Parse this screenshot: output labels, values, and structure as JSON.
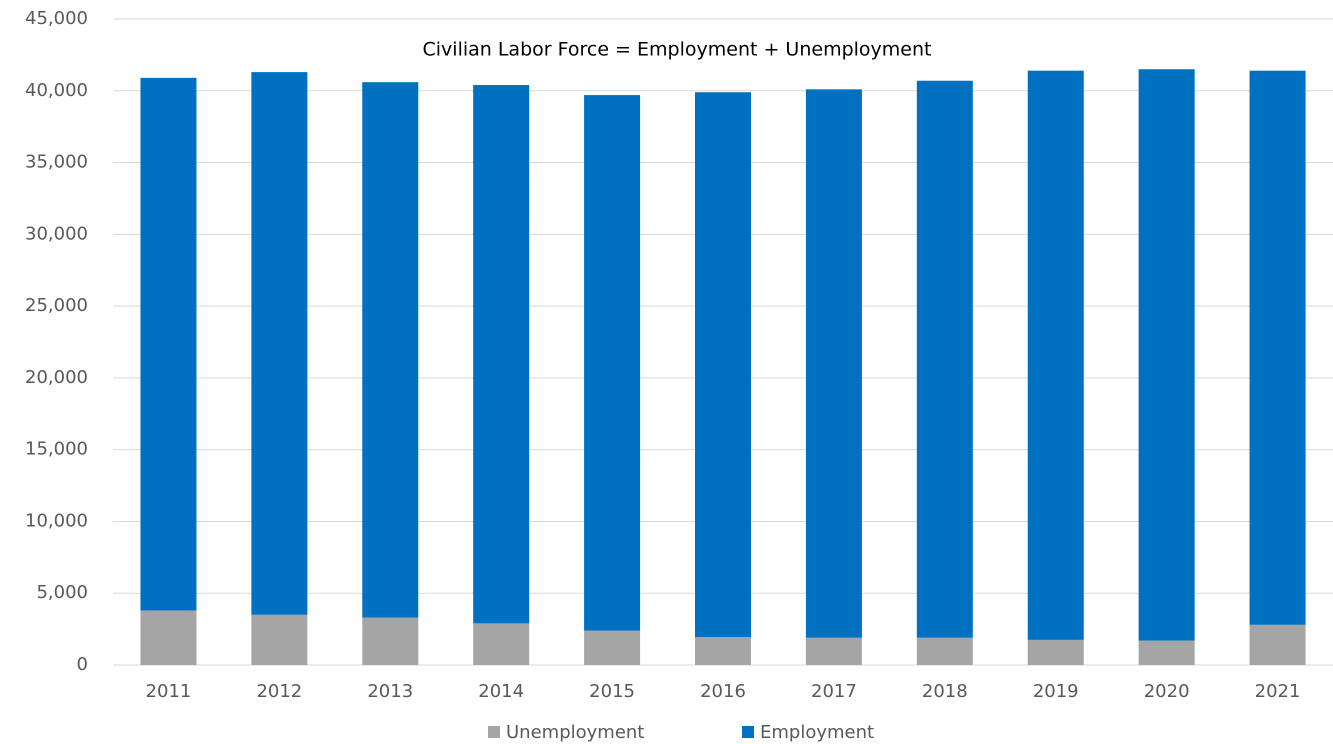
{
  "chart_data": {
    "type": "stacked_bar",
    "title": "Civilian Labor Force = Employment + Unemployment",
    "categories": [
      "2011",
      "2012",
      "2013",
      "2014",
      "2015",
      "2016",
      "2017",
      "2018",
      "2019",
      "2020",
      "2021"
    ],
    "series": [
      {
        "name": "Unemployment",
        "color": "#a5a5a5",
        "values": [
          3800,
          3500,
          3300,
          2900,
          2400,
          1950,
          1900,
          1900,
          1750,
          1700,
          2800
        ]
      },
      {
        "name": "Employment",
        "color": "#0070c0",
        "values": [
          37100,
          37800,
          37300,
          37500,
          37300,
          37950,
          38200,
          38800,
          39650,
          39800,
          38600
        ]
      }
    ],
    "ylim": [
      0,
      45000
    ],
    "yticks": [
      0,
      {
        "value": 5000,
        "label": "5,000"
      },
      {
        "value": 10000,
        "label": "10,000"
      },
      {
        "value": 15000,
        "label": "15,000"
      },
      {
        "value": 20000,
        "label": "20,000"
      },
      {
        "value": 25000,
        "label": "25,000"
      },
      {
        "value": 30000,
        "label": "30,000"
      },
      {
        "value": 35000,
        "label": "35,000"
      },
      {
        "value": 40000,
        "label": "40,000"
      },
      {
        "value": 45000,
        "label": "45,000"
      }
    ],
    "grid": true,
    "legend": "bottom"
  }
}
